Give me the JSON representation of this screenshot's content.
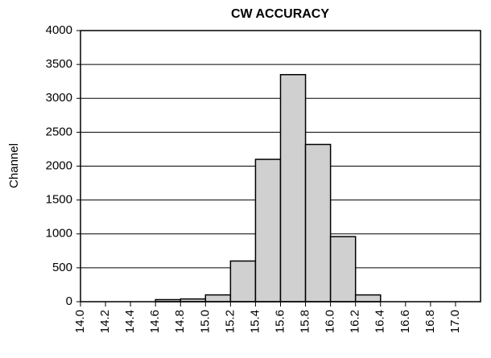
{
  "chart_data": {
    "type": "histogram",
    "title": "CW ACCURACY",
    "y_label": "Channel",
    "bins": [
      14.0,
      14.2,
      14.4,
      14.6,
      14.8,
      15.0,
      15.2,
      15.4,
      15.6,
      15.8,
      16.0,
      16.2,
      16.4,
      16.6,
      16.8,
      17.0,
      17.2
    ],
    "values": [
      0,
      0,
      0,
      30,
      40,
      100,
      600,
      2100,
      3350,
      2320,
      960,
      100,
      0,
      0,
      0,
      0
    ],
    "color": "#d0d0d0",
    "xlim": [
      14.0,
      17.2
    ],
    "xticks": [
      {
        "value": 14.0,
        "label": "14.0"
      },
      14.2,
      14.4,
      14.6,
      14.8,
      {
        "value": 15.0,
        "label": "15.0"
      },
      15.2,
      15.4,
      15.6,
      15.8,
      {
        "value": 16.0,
        "label": "16.0"
      },
      16.2,
      16.4,
      16.6,
      16.8,
      {
        "value": 17.0,
        "label": "17.0"
      }
    ],
    "ylim": [
      0,
      4000
    ],
    "yticks": [
      0,
      500,
      1000,
      1500,
      2000,
      2500,
      3000,
      3500,
      4000
    ],
    "grid": true
  }
}
